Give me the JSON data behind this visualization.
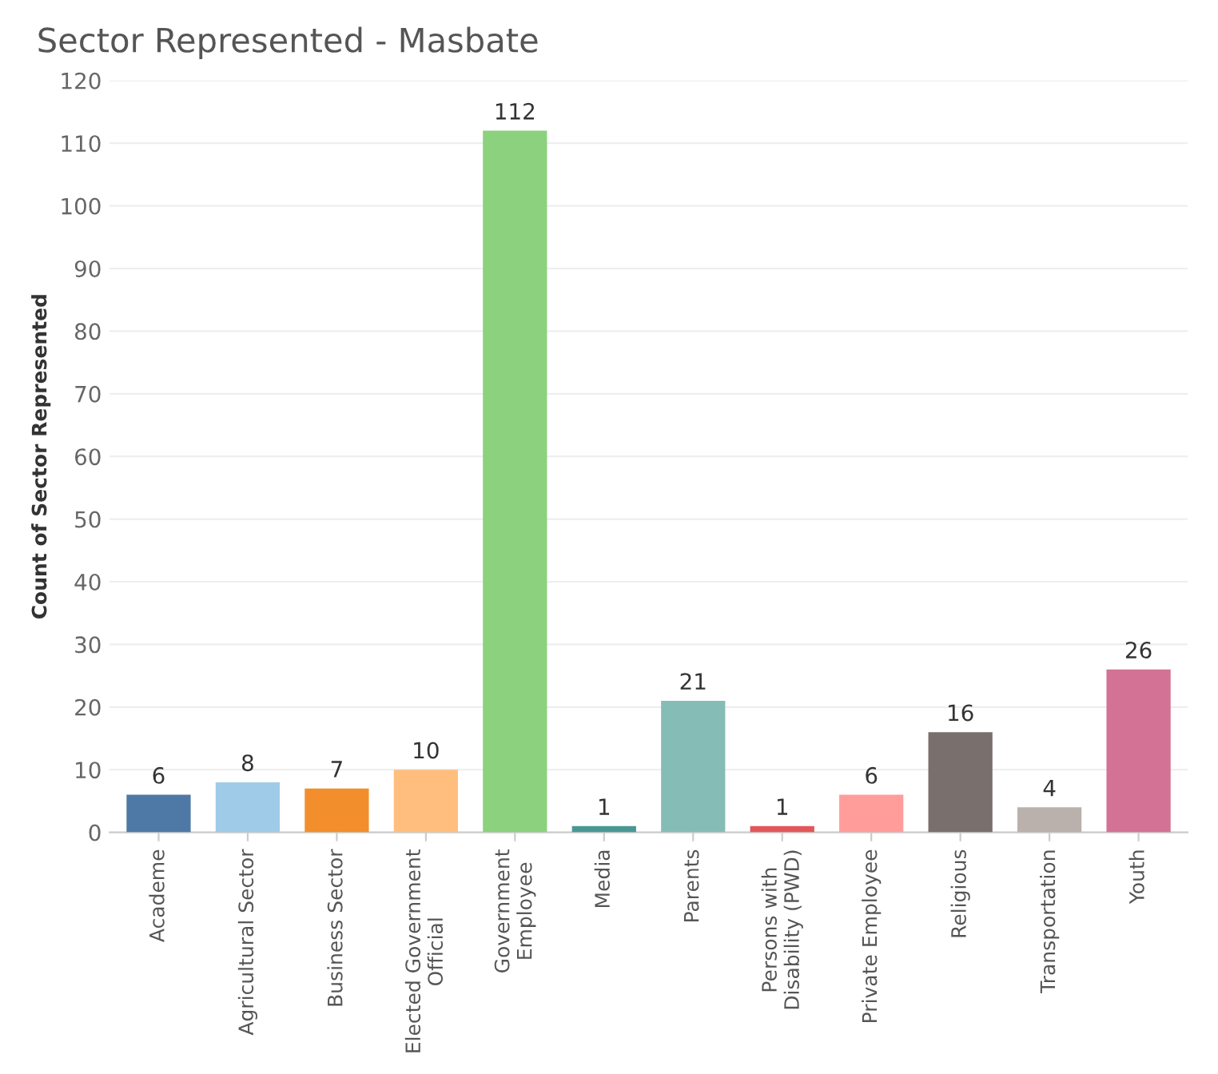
{
  "chart_data": {
    "type": "bar",
    "title": "Sector Represented - Masbate",
    "ylabel": "Count of Sector Represented",
    "categories": [
      "Academe",
      "Agricultural Sector",
      "Business Sector",
      "Elected Government\nOfficial",
      "Government\nEmployee",
      "Media",
      "Parents",
      "Persons with\nDisability (PWD)",
      "Private Employee",
      "Religious",
      "Transportation",
      "Youth"
    ],
    "values": [
      6,
      8,
      7,
      10,
      112,
      1,
      21,
      1,
      6,
      16,
      4,
      26
    ],
    "colors": [
      "#4e79a7",
      "#a0cbe8",
      "#f28e2b",
      "#ffbe7d",
      "#8cd17d",
      "#499894",
      "#86bcb6",
      "#e15759",
      "#ff9d9a",
      "#79706e",
      "#bab0ac",
      "#d37295"
    ],
    "ylim": [
      0,
      120
    ],
    "yticks": [
      0,
      10,
      20,
      30,
      40,
      50,
      60,
      70,
      80,
      90,
      100,
      110,
      120
    ],
    "grid": "y",
    "data_labels": true
  }
}
